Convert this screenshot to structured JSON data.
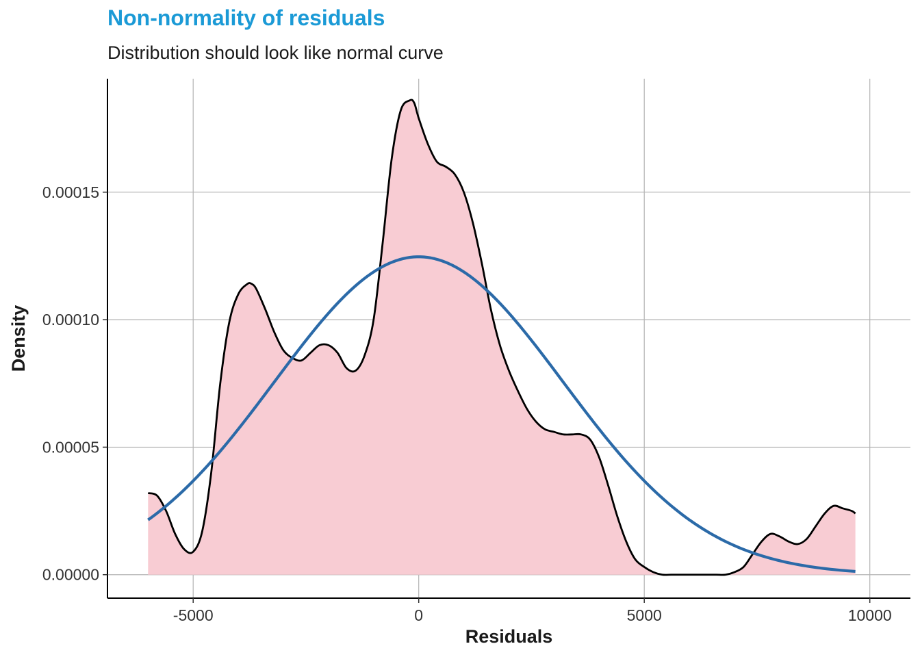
{
  "chart_data": {
    "type": "area",
    "title": "Non-normality of residuals",
    "subtitle": "Distribution should look like normal curve",
    "xlabel": "Residuals",
    "ylabel": "Density",
    "xlim": [
      -6900,
      10900
    ],
    "ylim": [
      -9.2e-06,
      0.0001945
    ],
    "x_ticks": [
      -5000,
      0,
      5000,
      10000
    ],
    "x_tick_labels": [
      "-5000",
      "0",
      "5000",
      "10000"
    ],
    "y_ticks": [
      0,
      5e-05,
      0.0001,
      0.00015
    ],
    "y_tick_labels": [
      "0.00000",
      "0.00005",
      "0.00010",
      "0.00015"
    ],
    "grid": true,
    "series": [
      {
        "kind": "density",
        "color": "#000000",
        "fill": "#f8ccd3",
        "x": [
          -6000,
          -5800,
          -5600,
          -5400,
          -5200,
          -5000,
          -4800,
          -4600,
          -4400,
          -4200,
          -4000,
          -3800,
          -3700,
          -3600,
          -3400,
          -3200,
          -3000,
          -2800,
          -2600,
          -2400,
          -2200,
          -2000,
          -1800,
          -1600,
          -1400,
          -1200,
          -1000,
          -800,
          -600,
          -400,
          -200,
          -100,
          0,
          200,
          400,
          600,
          800,
          1000,
          1200,
          1400,
          1600,
          1800,
          2000,
          2200,
          2400,
          2600,
          2800,
          3000,
          3200,
          3400,
          3600,
          3800,
          4000,
          4200,
          4400,
          4600,
          4800,
          5000,
          5200,
          5400,
          5600,
          5800,
          6000,
          6200,
          6400,
          6600,
          6800,
          7000,
          7200,
          7400,
          7600,
          7800,
          8000,
          8200,
          8400,
          8600,
          8800,
          9000,
          9200,
          9400,
          9600,
          9680
        ],
        "y": [
          3.2e-05,
          3.1e-05,
          2.5e-05,
          1.6e-05,
          1e-05,
          9e-06,
          1.7e-05,
          4e-05,
          7.5e-05,
          9.9e-05,
          0.00011,
          0.000114,
          0.000114,
          0.000112,
          0.000104,
          9.5e-05,
          8.8e-05,
          8.5e-05,
          8.4e-05,
          8.7e-05,
          9e-05,
          9e-05,
          8.7e-05,
          8.1e-05,
          8e-05,
          8.6e-05,
          0.0001,
          0.00013,
          0.000163,
          0.000182,
          0.000186,
          0.000185,
          0.000179,
          0.000169,
          0.000162,
          0.00016,
          0.000157,
          0.00015,
          0.000138,
          0.000122,
          0.000104,
          9e-05,
          8e-05,
          7.2e-05,
          6.5e-05,
          6e-05,
          5.7e-05,
          5.6e-05,
          5.5e-05,
          5.5e-05,
          5.5e-05,
          5.3e-05,
          4.6e-05,
          3.5e-05,
          2.3e-05,
          1.3e-05,
          6e-06,
          3e-06,
          1e-06,
          0.0,
          0.0,
          0.0,
          0.0,
          0.0,
          0.0,
          0.0,
          0.0,
          1e-06,
          3e-06,
          8e-06,
          1.3e-05,
          1.6e-05,
          1.5e-05,
          1.3e-05,
          1.2e-05,
          1.4e-05,
          1.9e-05,
          2.4e-05,
          2.7e-05,
          2.6e-05,
          2.5e-05,
          2.4e-05
        ]
      },
      {
        "kind": "normal",
        "color": "#2b6aa8",
        "mean": 0,
        "sd": 3200,
        "x_range": [
          -6000,
          9680
        ]
      }
    ]
  }
}
